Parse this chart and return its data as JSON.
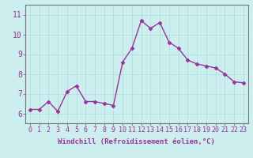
{
  "x": [
    0,
    1,
    2,
    3,
    4,
    5,
    6,
    7,
    8,
    9,
    10,
    11,
    12,
    13,
    14,
    15,
    16,
    17,
    18,
    19,
    20,
    21,
    22,
    23
  ],
  "y": [
    6.2,
    6.2,
    6.6,
    6.1,
    7.1,
    7.4,
    6.6,
    6.6,
    6.5,
    6.4,
    8.6,
    9.3,
    10.7,
    10.3,
    10.6,
    9.6,
    9.3,
    8.7,
    8.5,
    8.4,
    8.3,
    8.0,
    7.6,
    7.55
  ],
  "line_color": "#993399",
  "marker": "D",
  "marker_size": 2.5,
  "xlabel": "Windchill (Refroidissement éolien,°C)",
  "xlabel_fontsize": 6.5,
  "ylim": [
    5.5,
    11.5
  ],
  "xlim": [
    -0.5,
    23.5
  ],
  "xtick_labels": [
    "0",
    "1",
    "2",
    "3",
    "4",
    "5",
    "6",
    "7",
    "8",
    "9",
    "10",
    "11",
    "12",
    "13",
    "14",
    "15",
    "16",
    "17",
    "18",
    "19",
    "20",
    "21",
    "22",
    "23"
  ],
  "ytick_values": [
    6,
    7,
    8,
    9,
    10,
    11
  ],
  "grid_color": "#aadddd",
  "bg_color": "#cceeee",
  "tick_color": "#993399",
  "tick_fontsize": 6,
  "line_width": 1.0,
  "spine_color": "#777777"
}
